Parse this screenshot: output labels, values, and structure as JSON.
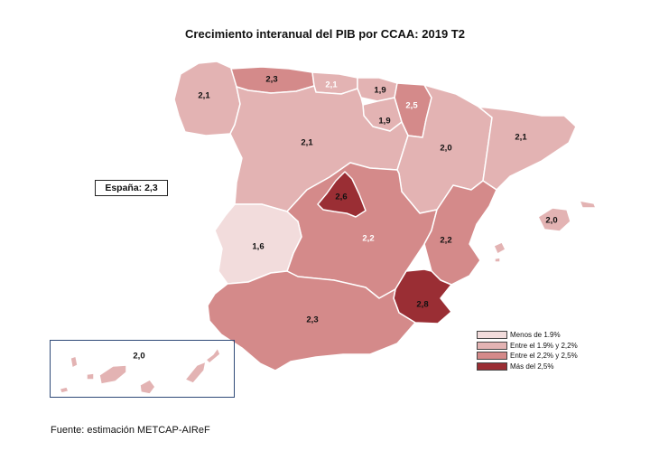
{
  "title": "Crecimiento interanual del PIB por CCAA: 2019 T2",
  "spain_label": "España:  2,3",
  "source": "Fuente: estimación METCAP-AIReF",
  "colors": {
    "menos_1_9": "#f2dcdc",
    "entre_1_9_2_2": "#e3b3b3",
    "entre_2_2_2_5": "#d48a8a",
    "mas_2_5": "#9a2e34",
    "border": "#ffffff",
    "frame": "#2f4a78"
  },
  "regions": {
    "galicia": "2,1",
    "asturias": "2,3",
    "cantabria": "2,1",
    "pais_vasco": "1,9",
    "navarra": "2,5",
    "la_rioja": "1,9",
    "castilla_leon": "2,1",
    "aragon": "2,0",
    "cataluna": "2,1",
    "madrid": "2,6",
    "castilla_la_mancha": "2,2",
    "extremadura": "1,6",
    "valencia": "2,2",
    "baleares": "2,0",
    "murcia": "2,8",
    "andalucia": "2,3",
    "canarias": "2,0"
  },
  "legend": [
    {
      "label": "Menos de 1.9%",
      "color": "#f2dcdc"
    },
    {
      "label": "Entre el 1.9% y 2,2%",
      "color": "#e3b3b3"
    },
    {
      "label": "Entre el 2,2% y 2,5%",
      "color": "#d48a8a"
    },
    {
      "label": "Más del 2,5%",
      "color": "#9a2e34"
    }
  ]
}
